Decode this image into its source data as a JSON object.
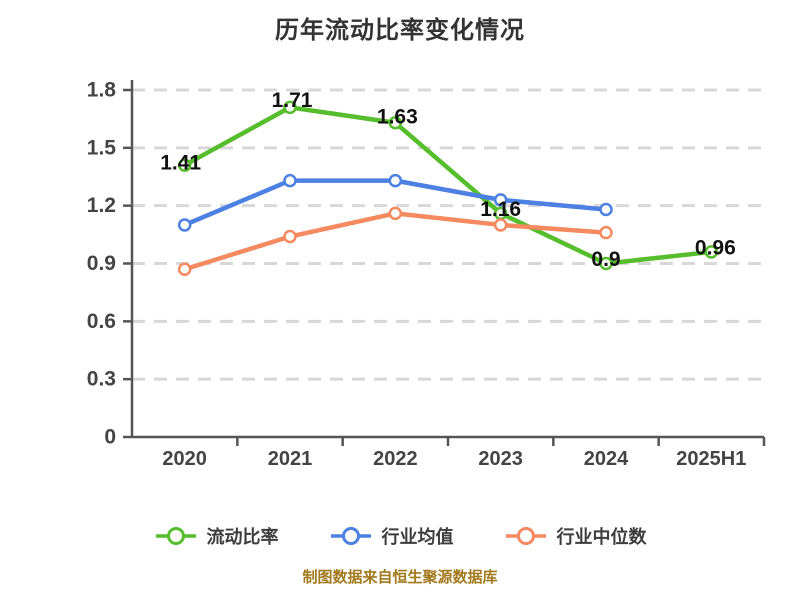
{
  "header": {
    "title": "历年流动比率变化情况"
  },
  "footer": {
    "text": "制图数据来自恒生聚源数据库",
    "color": "#a2791c"
  },
  "colors": {
    "background": "#ffffff",
    "title": "#333333",
    "grid": "#d8d8d8",
    "axis": "#555555",
    "tick_label": "#444444",
    "value_label": "#111111",
    "legend_text": "#3d3d3d",
    "series_green": "#56be2c",
    "series_blue": "#4c80e2",
    "series_orange": "#f5895f"
  },
  "chart_data": {
    "type": "line",
    "title": "历年流动比率变化情况",
    "categories": [
      "2020",
      "2021",
      "2022",
      "2023",
      "2024",
      "2025H1"
    ],
    "series": [
      {
        "name": "流动比率",
        "color": "#56be2c",
        "values": [
          1.41,
          1.71,
          1.63,
          1.16,
          0.9,
          0.96
        ],
        "point_labels": [
          "1.41",
          "1.71",
          "1.63",
          "1.16",
          "0.9",
          "0.96"
        ],
        "label_offsets": [
          [
            -4,
            -2
          ],
          [
            2,
            -7
          ],
          [
            2,
            -6
          ],
          [
            0,
            -4
          ],
          [
            0,
            -4
          ],
          [
            4,
            -4
          ]
        ]
      },
      {
        "name": "行业均值",
        "color": "#4c80e2",
        "values": [
          1.1,
          1.33,
          1.33,
          1.23,
          1.18,
          null
        ]
      },
      {
        "name": "行业中位数",
        "color": "#f5895f",
        "values": [
          0.87,
          1.04,
          1.16,
          1.1,
          1.06,
          null
        ]
      }
    ],
    "xlabel": "",
    "ylabel": "",
    "ylim": [
      0,
      1.8
    ],
    "yticks": [
      0,
      0.3,
      0.6,
      0.9,
      1.2,
      1.5,
      1.8
    ],
    "ytick_labels": [
      "0",
      "0.3",
      "0.6",
      "0.9",
      "1.2",
      "1.5",
      "1.8"
    ],
    "grid": "dashed-horizontal",
    "legend_position": "bottom",
    "marker": "circle-white-fill"
  }
}
